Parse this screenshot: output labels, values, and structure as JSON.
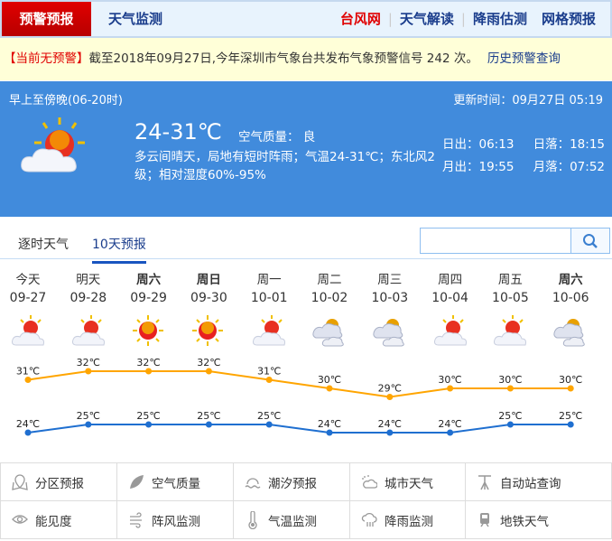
{
  "header": {
    "active_tab": "预警预报",
    "tab2": "天气监测",
    "links": [
      "台风网",
      "天气解读",
      "降雨估测",
      "网格预报"
    ]
  },
  "alert": {
    "tag": "【当前无预警】",
    "text": "截至2018年09月27日,今年深圳市气象台共发布气象预警信号 242 次。",
    "history_link": "历史预警查询"
  },
  "today": {
    "period": "早上至傍晚(06-20时)",
    "updated": "更新时间：09月27日 05:19",
    "temp": "24-31℃",
    "air_quality": "空气质量： 良",
    "desc": "多云间晴天，局地有短时阵雨；气温24-31℃；东北风2级；相对湿度60%-95%",
    "sunrise": "日出：06:13",
    "sunset": "日落：18:15",
    "moonrise": "月出：19:55",
    "moonset": "月落：07:52",
    "icon": "partly-cloudy-sun"
  },
  "tabs": [
    {
      "label": "逐时天气"
    },
    {
      "label": "10天预报",
      "active": true
    }
  ],
  "search": {
    "placeholder": "",
    "value": "",
    "icon": "search-icon"
  },
  "forecast": [
    {
      "day": "今天",
      "date": "09-27",
      "icon": "partly-cloudy",
      "high": "31℃",
      "low": "24℃"
    },
    {
      "day": "明天",
      "date": "09-28",
      "icon": "partly-cloudy",
      "high": "32℃",
      "low": "25℃"
    },
    {
      "day": "周六",
      "date": "09-29",
      "icon": "sunny",
      "high": "32℃",
      "low": "25℃",
      "bold": true
    },
    {
      "day": "周日",
      "date": "09-30",
      "icon": "sunny",
      "high": "32℃",
      "low": "25℃",
      "bold": true
    },
    {
      "day": "周一",
      "date": "10-01",
      "icon": "partly-cloudy",
      "high": "31℃",
      "low": "25℃"
    },
    {
      "day": "周二",
      "date": "10-02",
      "icon": "cloudy",
      "high": "30℃",
      "low": "24℃"
    },
    {
      "day": "周三",
      "date": "10-03",
      "icon": "cloudy",
      "high": "29℃",
      "low": "24℃"
    },
    {
      "day": "周四",
      "date": "10-04",
      "icon": "partly-cloudy",
      "high": "30℃",
      "low": "24℃"
    },
    {
      "day": "周五",
      "date": "10-05",
      "icon": "partly-cloudy",
      "high": "30℃",
      "low": "25℃"
    },
    {
      "day": "周六",
      "date": "10-06",
      "icon": "cloudy",
      "high": "30℃",
      "low": "25℃",
      "bold": true
    }
  ],
  "chart_data": {
    "type": "line",
    "categories": [
      "09-27",
      "09-28",
      "09-29",
      "09-30",
      "10-01",
      "10-02",
      "10-03",
      "10-04",
      "10-05",
      "10-06"
    ],
    "series": [
      {
        "values": [
          31,
          32,
          32,
          32,
          31,
          30,
          29,
          30,
          30,
          30
        ],
        "color": "#ffa500"
      },
      {
        "values": [
          24,
          25,
          25,
          25,
          25,
          24,
          24,
          24,
          25,
          25
        ],
        "color": "#1f6fd0"
      }
    ]
  },
  "services": [
    {
      "label": "分区预报",
      "icon": "map-pin-icon"
    },
    {
      "label": "空气质量",
      "icon": "leaf-icon"
    },
    {
      "label": "潮汐预报",
      "icon": "tide-icon"
    },
    {
      "label": "城市天气",
      "icon": "city-weather-icon"
    },
    {
      "label": "自动站查询",
      "icon": "weather-station-icon"
    },
    {
      "label": "能见度",
      "icon": "eye-icon"
    },
    {
      "label": "阵风监测",
      "icon": "wind-icon"
    },
    {
      "label": "气温监测",
      "icon": "thermometer-icon"
    },
    {
      "label": "降雨监测",
      "icon": "rain-cloud-icon"
    },
    {
      "label": "地铁天气",
      "icon": "metro-icon"
    }
  ]
}
